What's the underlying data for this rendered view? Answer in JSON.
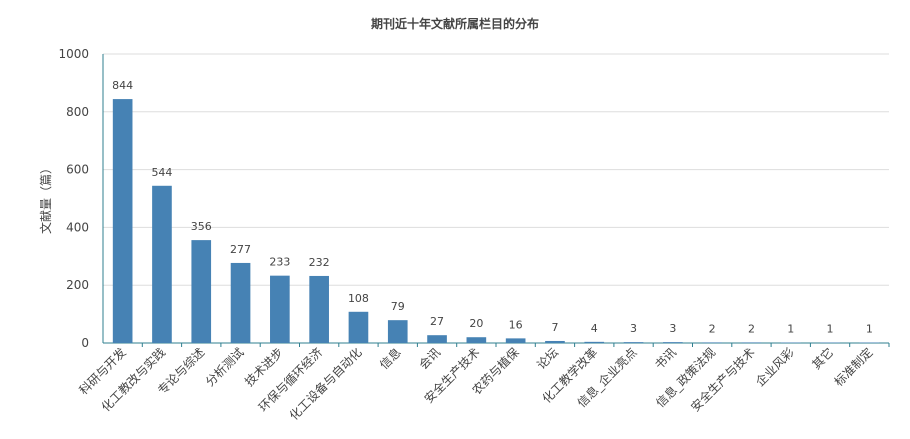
{
  "chart_data": {
    "type": "bar",
    "title": "期刊近十年文献所属栏目的分布",
    "xlabel": "",
    "ylabel": "文献量（篇）",
    "ylim": [
      0,
      1000
    ],
    "yticks": [
      0,
      200,
      400,
      600,
      800,
      1000
    ],
    "grid": true,
    "bar_color": "#4682B4",
    "categories": [
      "科研与开发",
      "化工教改与实践",
      "专论与综述",
      "分析测试",
      "技术进步",
      "环保与循环经济",
      "化工设备与自动化",
      "信息",
      "会讯",
      "安全生产技术",
      "农药与植保",
      "论坛",
      "化工教学改革",
      "信息_企业亮点",
      "书讯",
      "信息_政策法规",
      "安全生产与技术",
      "企业风彩",
      "其它",
      "标准制定"
    ],
    "values": [
      844,
      544,
      356,
      277,
      233,
      232,
      108,
      79,
      27,
      20,
      16,
      7,
      4,
      3,
      3,
      2,
      2,
      1,
      1,
      1
    ]
  }
}
